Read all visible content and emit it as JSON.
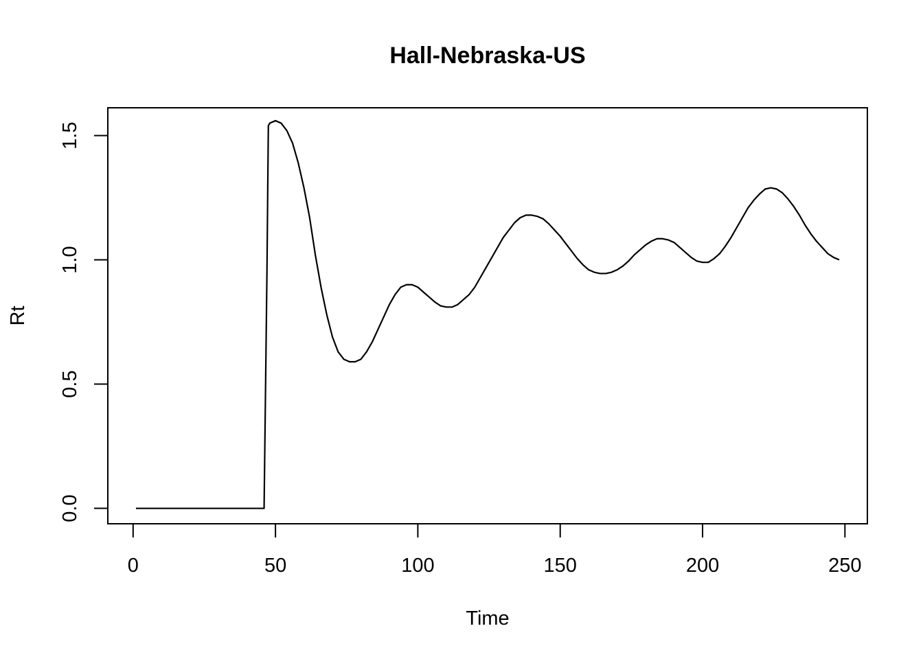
{
  "chart_data": {
    "type": "line",
    "title": "Hall-Nebraska-US",
    "xlabel": "Time",
    "ylabel": "Rt",
    "xlim": [
      1,
      248
    ],
    "ylim": [
      0,
      1.55
    ],
    "xticks": [
      0,
      50,
      100,
      150,
      200,
      250
    ],
    "yticks": [
      0.0,
      0.5,
      1.0,
      1.5
    ],
    "xtick_labels": [
      "0",
      "50",
      "100",
      "150",
      "200",
      "250"
    ],
    "ytick_labels": [
      "0.0",
      "0.5",
      "1.0",
      "1.5"
    ],
    "grid": false,
    "series": [
      {
        "color": "#000000",
        "points": [
          [
            1,
            0
          ],
          [
            10,
            0
          ],
          [
            20,
            0
          ],
          [
            30,
            0
          ],
          [
            40,
            0
          ],
          [
            46,
            0
          ],
          [
            47,
            0.94
          ],
          [
            47.5,
            1.54
          ],
          [
            48,
            1.55
          ],
          [
            50,
            1.56
          ],
          [
            52,
            1.55
          ],
          [
            54,
            1.52
          ],
          [
            56,
            1.47
          ],
          [
            58,
            1.39
          ],
          [
            60,
            1.29
          ],
          [
            62,
            1.17
          ],
          [
            64,
            1.02
          ],
          [
            66,
            0.89
          ],
          [
            68,
            0.78
          ],
          [
            70,
            0.69
          ],
          [
            72,
            0.63
          ],
          [
            74,
            0.6
          ],
          [
            76,
            0.59
          ],
          [
            78,
            0.59
          ],
          [
            80,
            0.6
          ],
          [
            82,
            0.63
          ],
          [
            84,
            0.67
          ],
          [
            86,
            0.72
          ],
          [
            88,
            0.77
          ],
          [
            90,
            0.82
          ],
          [
            92,
            0.86
          ],
          [
            94,
            0.89
          ],
          [
            96,
            0.9
          ],
          [
            98,
            0.9
          ],
          [
            100,
            0.89
          ],
          [
            102,
            0.87
          ],
          [
            104,
            0.85
          ],
          [
            106,
            0.83
          ],
          [
            108,
            0.815
          ],
          [
            110,
            0.81
          ],
          [
            112,
            0.81
          ],
          [
            114,
            0.82
          ],
          [
            116,
            0.84
          ],
          [
            118,
            0.86
          ],
          [
            120,
            0.89
          ],
          [
            122,
            0.93
          ],
          [
            124,
            0.97
          ],
          [
            126,
            1.01
          ],
          [
            128,
            1.05
          ],
          [
            130,
            1.09
          ],
          [
            132,
            1.12
          ],
          [
            134,
            1.15
          ],
          [
            136,
            1.17
          ],
          [
            138,
            1.18
          ],
          [
            140,
            1.18
          ],
          [
            142,
            1.175
          ],
          [
            144,
            1.165
          ],
          [
            146,
            1.145
          ],
          [
            148,
            1.12
          ],
          [
            150,
            1.095
          ],
          [
            152,
            1.065
          ],
          [
            154,
            1.035
          ],
          [
            156,
            1.005
          ],
          [
            158,
            0.98
          ],
          [
            160,
            0.96
          ],
          [
            162,
            0.95
          ],
          [
            164,
            0.945
          ],
          [
            166,
            0.945
          ],
          [
            168,
            0.95
          ],
          [
            170,
            0.96
          ],
          [
            172,
            0.975
          ],
          [
            174,
            0.995
          ],
          [
            176,
            1.02
          ],
          [
            178,
            1.04
          ],
          [
            180,
            1.06
          ],
          [
            182,
            1.075
          ],
          [
            184,
            1.085
          ],
          [
            186,
            1.085
          ],
          [
            188,
            1.08
          ],
          [
            190,
            1.07
          ],
          [
            192,
            1.05
          ],
          [
            194,
            1.03
          ],
          [
            196,
            1.01
          ],
          [
            198,
            0.995
          ],
          [
            200,
            0.99
          ],
          [
            202,
            0.99
          ],
          [
            204,
            1.005
          ],
          [
            206,
            1.025
          ],
          [
            208,
            1.055
          ],
          [
            210,
            1.09
          ],
          [
            212,
            1.13
          ],
          [
            214,
            1.17
          ],
          [
            216,
            1.21
          ],
          [
            218,
            1.24
          ],
          [
            220,
            1.265
          ],
          [
            222,
            1.285
          ],
          [
            224,
            1.29
          ],
          [
            226,
            1.285
          ],
          [
            228,
            1.27
          ],
          [
            230,
            1.245
          ],
          [
            232,
            1.215
          ],
          [
            234,
            1.18
          ],
          [
            236,
            1.14
          ],
          [
            238,
            1.105
          ],
          [
            240,
            1.075
          ],
          [
            242,
            1.05
          ],
          [
            244,
            1.025
          ],
          [
            246,
            1.01
          ],
          [
            248,
            1.0
          ]
        ]
      }
    ]
  }
}
